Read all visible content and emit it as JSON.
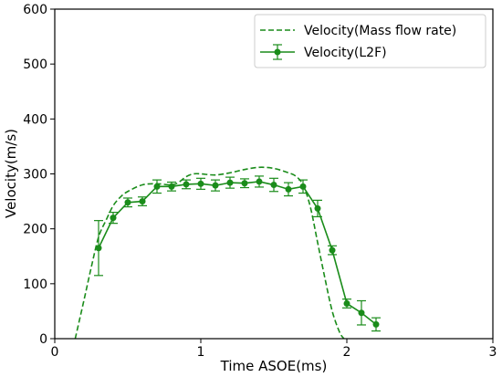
{
  "chart_data": {
    "type": "line",
    "xlabel": "Time ASOE(ms)",
    "ylabel": "Velocity(m/s)",
    "xlim": [
      0,
      3
    ],
    "ylim": [
      0,
      600
    ],
    "xticks": [
      "0",
      "1",
      "2",
      "3"
    ],
    "yticks": [
      "0",
      "100",
      "200",
      "300",
      "400",
      "500",
      "600"
    ],
    "grid": false,
    "legend_position": "top-right",
    "series": [
      {
        "name": "Velocity(Mass flow rate)",
        "style": "dashed",
        "color": "#1a8c1a",
        "x": [
          0.14,
          0.2,
          0.25,
          0.3,
          0.35,
          0.4,
          0.45,
          0.5,
          0.6,
          0.7,
          0.8,
          0.85,
          0.9,
          0.95,
          1.0,
          1.1,
          1.2,
          1.3,
          1.4,
          1.5,
          1.6,
          1.65,
          1.7,
          1.75,
          1.8,
          1.85,
          1.9,
          1.95,
          1.98
        ],
        "y": [
          0,
          70,
          130,
          185,
          215,
          242,
          258,
          268,
          280,
          282,
          280,
          285,
          295,
          300,
          300,
          298,
          302,
          308,
          312,
          310,
          302,
          296,
          280,
          240,
          175,
          110,
          50,
          12,
          0
        ]
      },
      {
        "name": "Velocity(L2F)",
        "style": "solid-markers",
        "color": "#1a8c1a",
        "x": [
          0.3,
          0.4,
          0.5,
          0.6,
          0.7,
          0.8,
          0.9,
          1.0,
          1.1,
          1.2,
          1.3,
          1.4,
          1.5,
          1.6,
          1.7,
          1.8,
          1.9,
          2.0,
          2.1,
          2.2
        ],
        "y": [
          165,
          220,
          248,
          250,
          277,
          277,
          281,
          282,
          279,
          284,
          283,
          286,
          280,
          272,
          277,
          237,
          161,
          64,
          47,
          26
        ],
        "err": [
          50,
          10,
          8,
          8,
          12,
          8,
          8,
          10,
          10,
          10,
          8,
          10,
          12,
          12,
          12,
          15,
          8,
          8,
          22,
          12
        ]
      }
    ]
  }
}
